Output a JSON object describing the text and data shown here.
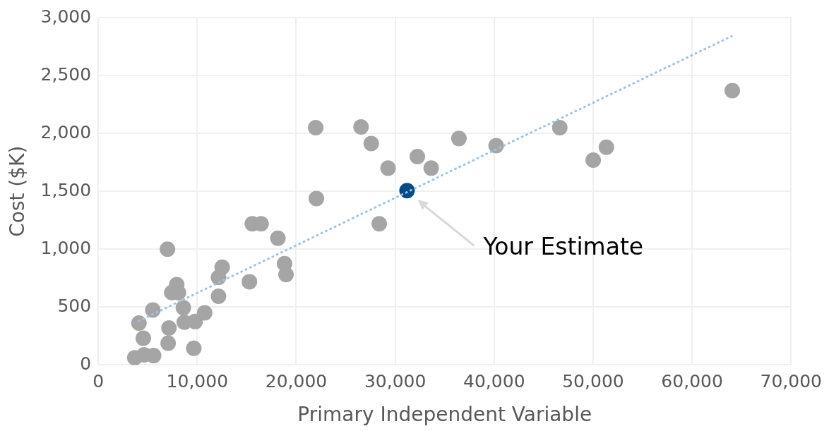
{
  "chart_data": {
    "type": "scatter",
    "xlabel": "Primary Independent Variable",
    "ylabel": "Cost ($K)",
    "xlim": [
      0,
      70000
    ],
    "ylim": [
      0,
      3000
    ],
    "xticks": [
      {
        "value": 0,
        "label": "0"
      },
      {
        "value": 10000,
        "label": "10,000"
      },
      {
        "value": 20000,
        "label": "20,000"
      },
      {
        "value": 30000,
        "label": "30,000"
      },
      {
        "value": 40000,
        "label": "40,000"
      },
      {
        "value": 50000,
        "label": "50,000"
      },
      {
        "value": 60000,
        "label": "60,000"
      },
      {
        "value": 70000,
        "label": "70,000"
      }
    ],
    "yticks": [
      {
        "value": 0,
        "label": "0"
      },
      {
        "value": 500,
        "label": "500"
      },
      {
        "value": 1000,
        "label": "1,000"
      },
      {
        "value": 1500,
        "label": "1,500"
      },
      {
        "value": 2000,
        "label": "2,000"
      },
      {
        "value": 2500,
        "label": "2,500"
      },
      {
        "value": 3000,
        "label": "3,000"
      }
    ],
    "grid": true,
    "legend": false,
    "marker": "circle",
    "series": [
      {
        "color": "#a5a5a5",
        "x": [
          3680,
          4630,
          5590,
          4550,
          4110,
          5510,
          6990,
          7140,
          7060,
          7930,
          7430,
          8100,
          8600,
          8690,
          9790,
          9650,
          10750,
          12150,
          12150,
          12520,
          15270,
          15560,
          16450,
          18150,
          18820,
          18970,
          21970,
          22040,
          26550,
          27580,
          28390,
          29280,
          32240,
          33640,
          36440,
          40200,
          46630,
          50010,
          51340,
          64060
        ],
        "values": [
          62,
          88,
          81,
          231,
          362,
          475,
          1000,
          319,
          188,
          694,
          625,
          625,
          494,
          369,
          375,
          144,
          450,
          594,
          756,
          844,
          719,
          1219,
          1219,
          1094,
          875,
          781,
          2050,
          1438,
          2056,
          1913,
          1219,
          1700,
          1800,
          1700,
          1956,
          1894,
          2050,
          1769,
          1881,
          2369
        ]
      },
      {
        "color": "#004c89",
        "x": [
          31200
        ],
        "values": [
          1506
        ]
      },
      {
        "type": "line",
        "color": "#9dc3e6",
        "line_style": "dotted",
        "marker": "none",
        "x": [
          4100,
          64000
        ],
        "values": [
          380,
          2840
        ]
      }
    ],
    "annotations": [
      "Your Estimate"
    ]
  }
}
